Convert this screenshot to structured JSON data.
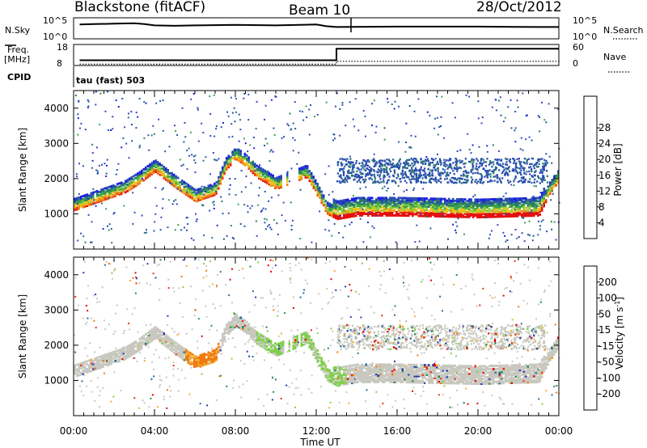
{
  "header": {
    "station": "Blackstone (fitACF)",
    "beam": "Beam 10",
    "date": "28/Oct/2012"
  },
  "strip_labels": {
    "nsky": "N.Sky",
    "nsearch": "N.Search",
    "freq_line1": "Freq.",
    "freq_line2": "[MHz]",
    "nave": "Nave",
    "cpid": "CPID",
    "cpid_value": "tau (fast) 503"
  },
  "strip_ticks": {
    "noise_left_top": "10^5",
    "noise_left_bottom": "10^0",
    "noise_right_top": "10^5",
    "noise_right_bottom": "10^0",
    "freq_left_top": "18",
    "freq_left_bottom": "8",
    "nave_right_top": "60",
    "nave_right_bottom": "0"
  },
  "colors": {
    "frame": "#000000",
    "axis_text": "#000000",
    "noise_line": "#000000"
  },
  "chart_data": [
    {
      "type": "line",
      "panel": "noise",
      "title": "",
      "series": [
        {
          "name": "N.Sky",
          "x_hours": [
            0.3,
            1,
            2,
            3,
            3.5,
            4,
            5,
            6,
            8,
            10,
            12,
            12.5,
            13,
            16,
            20,
            23,
            24
          ],
          "values_log10": [
            3.4,
            3.5,
            3.6,
            3.7,
            3.5,
            3.2,
            3.1,
            3.2,
            3.3,
            3.2,
            3.4,
            3.0,
            2.8,
            2.9,
            2.9,
            2.8,
            2.8
          ]
        }
      ],
      "ylim_log10": [
        0,
        5
      ]
    },
    {
      "type": "line",
      "panel": "frequency",
      "series": [
        {
          "name": "Freq.",
          "x_hours": [
            0.3,
            13.0,
            13.0,
            24
          ],
          "values": [
            10.5,
            10.5,
            16.0,
            16.0
          ]
        },
        {
          "name": "Nave",
          "x_hours": [
            0.3,
            13.0,
            13.0,
            24
          ],
          "values": [
            4,
            4,
            12,
            12
          ]
        }
      ],
      "ylim_left": [
        8,
        18
      ],
      "ylim_right": [
        0,
        60
      ]
    },
    {
      "type": "heatmap",
      "panel": "power",
      "xlabel": "",
      "ylabel": "Slant Range [km]",
      "xlim_hours": [
        0,
        24
      ],
      "ylim": [
        0,
        4500
      ],
      "yticks": [
        "1000",
        "2000",
        "3000",
        "4000"
      ],
      "colorbar_label": "Power [dB]",
      "colorbar_ticks": [
        "4",
        "8",
        "12",
        "16",
        "20",
        "24",
        "28"
      ],
      "colorbar_range": [
        0,
        30
      ],
      "colorbar_colors": [
        "#1e1ee6",
        "#2a4fb0",
        "#2b7a6e",
        "#3aa24a",
        "#8fcf3a",
        "#f0c020",
        "#f08a18",
        "#e84410",
        "#e41010"
      ],
      "main_band_km": [
        [
          0.0,
          1150
        ],
        [
          1.5,
          1450
        ],
        [
          2.5,
          1650
        ],
        [
          3.2,
          1900
        ],
        [
          4.0,
          2250
        ],
        [
          5.0,
          1800
        ],
        [
          6.0,
          1400
        ],
        [
          7.0,
          1600
        ],
        [
          7.5,
          2300
        ],
        [
          8.0,
          2600
        ],
        [
          8.5,
          2400
        ],
        [
          9.0,
          2100
        ],
        [
          10.0,
          1750
        ],
        [
          11.5,
          2100
        ],
        [
          12.0,
          1600
        ],
        [
          12.5,
          1050
        ],
        [
          13.0,
          900
        ],
        [
          14.0,
          1000
        ],
        [
          16.0,
          1000
        ],
        [
          20.0,
          950
        ],
        [
          23.0,
          1000
        ],
        [
          23.5,
          1600
        ],
        [
          24.0,
          2000
        ]
      ],
      "scatter_upper_km": [
        1900,
        2600
      ]
    },
    {
      "type": "heatmap",
      "panel": "velocity",
      "xlabel": "Time UT",
      "ylabel": "Slant Range [km]",
      "xlim_hours": [
        0,
        24
      ],
      "xticks": [
        "00:00",
        "04:00",
        "08:00",
        "12:00",
        "16:00",
        "20:00",
        "00:00"
      ],
      "ylim": [
        0,
        4500
      ],
      "yticks": [
        "1000",
        "2000",
        "3000",
        "4000"
      ],
      "colorbar_label": "Velocity [m s^-1]",
      "colorbar_ticks": [
        "200",
        "100",
        "50",
        "15",
        "-15",
        "-50",
        "-100",
        "-200"
      ],
      "colorbar_range": [
        -250,
        250
      ],
      "colorbar_colors": [
        "#2a3ab0",
        "#2a6a9a",
        "#2c8a50",
        "#7fd04a",
        "#c8c8c0",
        "#f0b030",
        "#f07a10",
        "#e83010",
        "#e40000"
      ],
      "orange_patch_hours": [
        5.5,
        7.2
      ],
      "orange_patch_km": [
        1200,
        2250
      ]
    }
  ]
}
